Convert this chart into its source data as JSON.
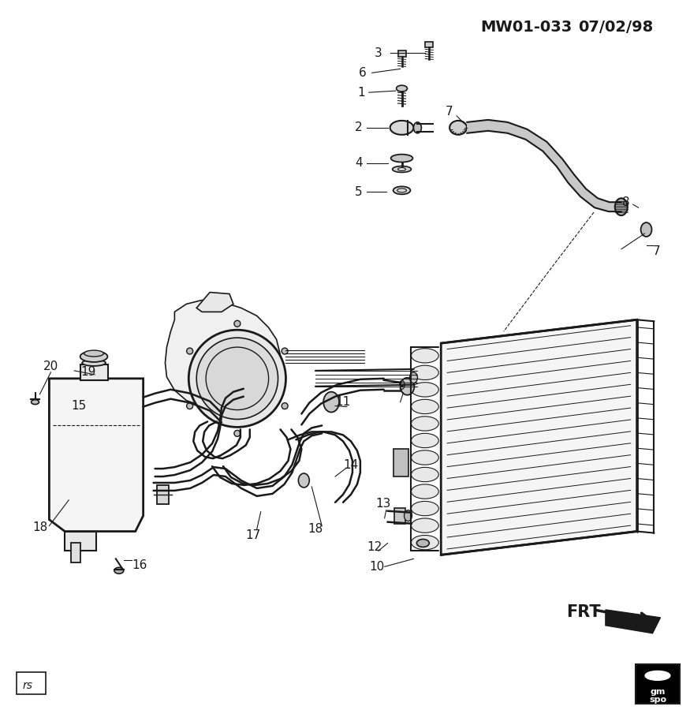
{
  "title_left": "MW01-033",
  "title_right": "07/02/98",
  "bg_color": "#ffffff",
  "line_color": "#1a1a1a",
  "rs_text": "rs",
  "frt_text": "FRT",
  "gm_line1": "gm",
  "gm_line2": "spo",
  "fig_width": 8.75,
  "fig_height": 9.0,
  "dpi": 100
}
